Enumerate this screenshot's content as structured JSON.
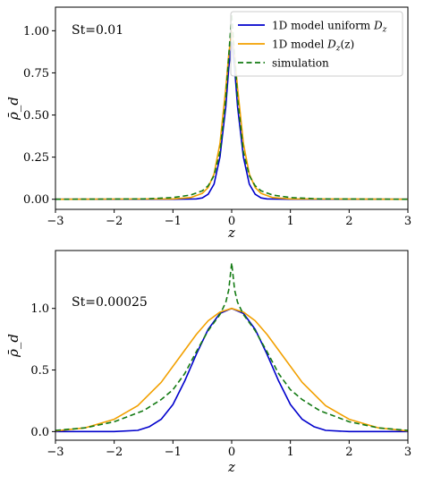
{
  "chart_data": [
    {
      "type": "line",
      "annotation": "St=0.01",
      "xlabel": "z",
      "ylabel": "ρ̄_d",
      "xlim": [
        -3,
        3
      ],
      "ylim": [
        -0.06,
        1.14
      ],
      "xticks": [
        -3,
        -2,
        -1,
        0,
        1,
        2,
        3
      ],
      "xtick_labels": [
        "−3",
        "−2",
        "−1",
        "0",
        "1",
        "2",
        "3"
      ],
      "yticks": [
        0,
        0.25,
        0.5,
        0.75,
        1.0
      ],
      "ytick_labels": [
        "0.00",
        "0.25",
        "0.50",
        "0.75",
        "1.00"
      ],
      "grid": false,
      "legend_position": "top-right",
      "series": [
        {
          "name": "1D model uniform D_z",
          "legend_label": "1D model uniform ",
          "legend_sym": "D",
          "legend_sub": "z",
          "legend_tail": "",
          "color": "#0000cc",
          "dash": "solid",
          "x": [
            -3,
            -1,
            -0.6,
            -0.5,
            -0.4,
            -0.3,
            -0.2,
            -0.1,
            -0.05,
            0,
            0.05,
            0.1,
            0.2,
            0.3,
            0.4,
            0.5,
            0.6,
            1,
            3
          ],
          "y": [
            0,
            0,
            0.002,
            0.008,
            0.03,
            0.09,
            0.25,
            0.55,
            0.78,
            0.93,
            0.78,
            0.55,
            0.25,
            0.09,
            0.03,
            0.008,
            0.002,
            0,
            0
          ]
        },
        {
          "name": "1D model D_z(z)",
          "legend_label": "1D model ",
          "legend_sym": "D",
          "legend_sub": "z",
          "legend_tail": "(z)",
          "color": "#f2a000",
          "dash": "solid",
          "x": [
            -3,
            -1,
            -0.7,
            -0.5,
            -0.4,
            -0.3,
            -0.2,
            -0.1,
            -0.05,
            0,
            0.05,
            0.1,
            0.2,
            0.3,
            0.4,
            0.5,
            0.7,
            1,
            3
          ],
          "y": [
            0,
            0.002,
            0.01,
            0.035,
            0.07,
            0.15,
            0.33,
            0.66,
            0.86,
            1.0,
            0.86,
            0.66,
            0.33,
            0.15,
            0.07,
            0.035,
            0.01,
            0.002,
            0
          ]
        },
        {
          "name": "simulation",
          "legend_label": "simulation",
          "legend_sym": "",
          "legend_sub": "",
          "legend_tail": "",
          "color": "#137a13",
          "dash": "dashed",
          "x": [
            -3,
            -1.5,
            -1,
            -0.7,
            -0.5,
            -0.4,
            -0.3,
            -0.2,
            -0.1,
            -0.05,
            -0.02,
            0,
            0.02,
            0.05,
            0.1,
            0.2,
            0.3,
            0.4,
            0.5,
            0.7,
            1,
            1.5,
            3
          ],
          "y": [
            0,
            0.002,
            0.01,
            0.025,
            0.05,
            0.08,
            0.14,
            0.28,
            0.6,
            0.85,
            1.0,
            1.1,
            1.0,
            0.85,
            0.6,
            0.28,
            0.14,
            0.08,
            0.05,
            0.025,
            0.01,
            0.002,
            0
          ]
        }
      ]
    },
    {
      "type": "line",
      "annotation": "St=0.00025",
      "xlabel": "z",
      "ylabel": "ρ̄_d",
      "xlim": [
        -3,
        3
      ],
      "ylim": [
        -0.07,
        1.47
      ],
      "xticks": [
        -3,
        -2,
        -1,
        0,
        1,
        2,
        3
      ],
      "xtick_labels": [
        "−3",
        "−2",
        "−1",
        "0",
        "1",
        "2",
        "3"
      ],
      "yticks": [
        0,
        0.5,
        1.0
      ],
      "ytick_labels": [
        "0.0",
        "0.5",
        "1.0"
      ],
      "grid": false,
      "series": [
        {
          "name": "1D model uniform D_z",
          "color": "#0000cc",
          "dash": "solid",
          "x": [
            -3,
            -2,
            -1.6,
            -1.4,
            -1.2,
            -1.0,
            -0.8,
            -0.6,
            -0.4,
            -0.2,
            0,
            0.2,
            0.4,
            0.6,
            0.8,
            1.0,
            1.2,
            1.4,
            1.6,
            2,
            3
          ],
          "y": [
            0,
            0,
            0.01,
            0.04,
            0.1,
            0.22,
            0.41,
            0.63,
            0.83,
            0.96,
            1.0,
            0.96,
            0.83,
            0.63,
            0.41,
            0.22,
            0.1,
            0.04,
            0.01,
            0,
            0
          ]
        },
        {
          "name": "1D model D_z(z)",
          "color": "#f2a000",
          "dash": "solid",
          "x": [
            -3,
            -2.5,
            -2,
            -1.6,
            -1.2,
            -0.8,
            -0.6,
            -0.4,
            -0.2,
            0,
            0.2,
            0.4,
            0.6,
            0.8,
            1.2,
            1.6,
            2,
            2.5,
            3
          ],
          "y": [
            0.005,
            0.03,
            0.1,
            0.21,
            0.4,
            0.66,
            0.79,
            0.9,
            0.97,
            1.0,
            0.97,
            0.9,
            0.79,
            0.66,
            0.4,
            0.21,
            0.1,
            0.03,
            0.005
          ]
        },
        {
          "name": "simulation",
          "color": "#137a13",
          "dash": "dashed",
          "x": [
            -3,
            -2.5,
            -2,
            -1.5,
            -1.2,
            -1.0,
            -0.8,
            -0.6,
            -0.4,
            -0.2,
            -0.1,
            -0.05,
            0,
            0.05,
            0.1,
            0.2,
            0.4,
            0.6,
            0.8,
            1.0,
            1.2,
            1.5,
            2,
            2.5,
            3
          ],
          "y": [
            0.01,
            0.03,
            0.08,
            0.17,
            0.26,
            0.34,
            0.47,
            0.65,
            0.82,
            0.95,
            1.05,
            1.15,
            1.37,
            1.15,
            1.05,
            0.95,
            0.82,
            0.65,
            0.47,
            0.34,
            0.26,
            0.17,
            0.08,
            0.03,
            0.01
          ]
        }
      ]
    }
  ]
}
